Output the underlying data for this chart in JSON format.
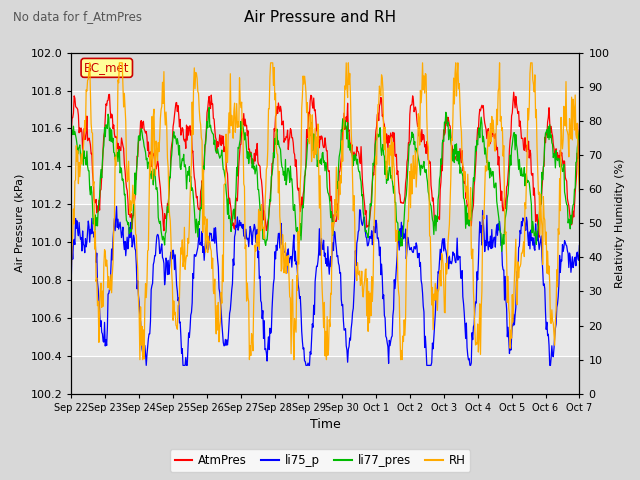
{
  "title": "Air Pressure and RH",
  "subtitle": "No data for f_AtmPres",
  "xlabel": "Time",
  "ylabel_left": "Air Pressure (kPa)",
  "ylabel_right": "Relativity Humidity (%)",
  "ylim_left": [
    100.2,
    102.0
  ],
  "ylim_right": [
    0,
    100
  ],
  "yticks_left": [
    100.2,
    100.4,
    100.6,
    100.8,
    101.0,
    101.2,
    101.4,
    101.6,
    101.8,
    102.0
  ],
  "yticks_right": [
    0,
    10,
    20,
    30,
    40,
    50,
    60,
    70,
    80,
    90,
    100
  ],
  "colors": {
    "AtmPres": "#ff0000",
    "li75_p": "#0000ff",
    "li77_pres": "#00bb00",
    "RH": "#ffaa00"
  },
  "legend_label": "BC_met",
  "legend_box_color": "#ffff99",
  "legend_box_edge": "#cc0000",
  "background_plot": "#d8d8d8",
  "background_inner": "#e8e8e8",
  "n_points": 720,
  "x_labels": [
    "Sep 22",
    "Sep 23",
    "Sep 24",
    "Sep 25",
    "Sep 26",
    "Sep 27",
    "Sep 28",
    "Sep 29",
    "Sep 30",
    "Oct 1",
    "Oct 2",
    "Oct 3",
    "Oct 4",
    "Oct 5",
    "Oct 6",
    "Oct 7"
  ]
}
